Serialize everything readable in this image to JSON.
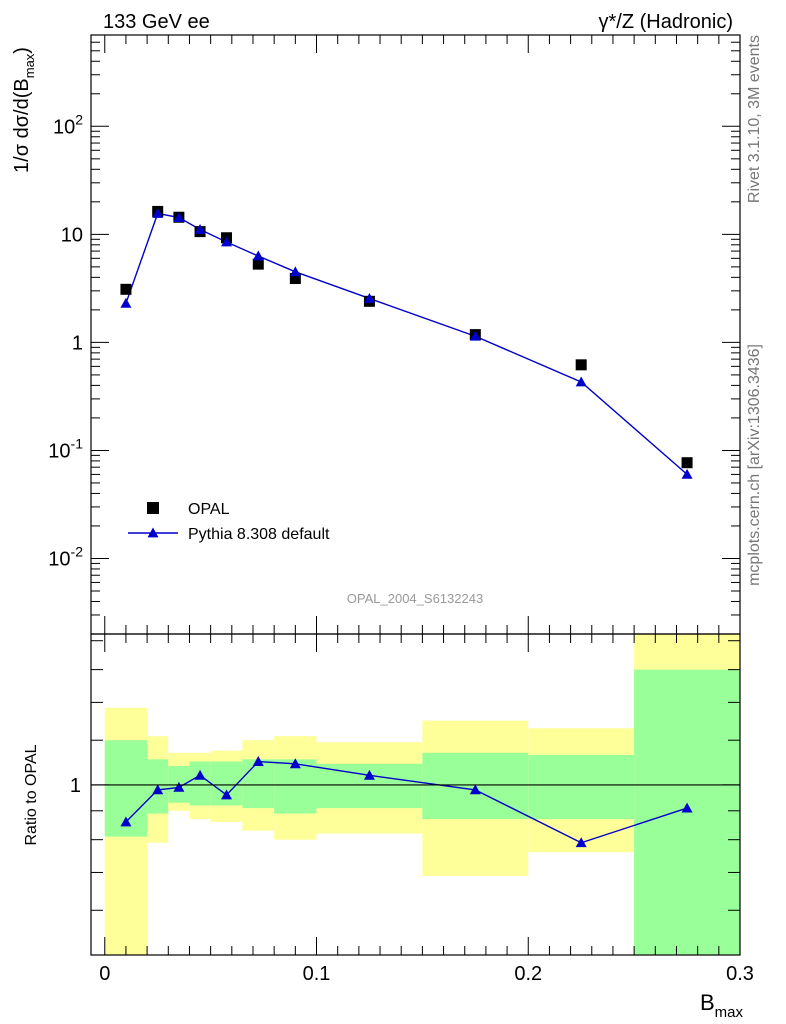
{
  "header": {
    "left_label": "133 GeV ee",
    "right_label": "γ*/Z (Hadronic)"
  },
  "side_text": {
    "rivet": "Rivet 3.1.10,  3M events",
    "mcplots": "mcplots.cern.ch [arXiv:1306.3436]"
  },
  "watermark": "OPAL_2004_S6132243",
  "colors": {
    "data": "#000000",
    "mc": "#0000cc",
    "band_stat": "#99ff99",
    "band_total": "#ffff99"
  },
  "chart_data": [
    {
      "type": "scatter",
      "panel": "main",
      "ylabel": "1/σ dσ/d(B_max)",
      "y_scale": "log",
      "ylim": [
        0.002,
        700
      ],
      "xlim": [
        -0.0065,
        0.3
      ],
      "y_ticks": [
        "10^-2",
        "10^-1",
        "1",
        "10",
        "10^2"
      ],
      "legend_placement": "lower-left",
      "series": [
        {
          "name": "OPAL",
          "marker": "square",
          "x": [
            0.01,
            0.025,
            0.035,
            0.045,
            0.0575,
            0.0725,
            0.09,
            0.125,
            0.175,
            0.225,
            0.275
          ],
          "y": [
            3.1,
            16.3,
            14.4,
            10.6,
            9.3,
            5.3,
            3.9,
            2.4,
            1.18,
            0.62,
            0.077
          ]
        },
        {
          "name": "Pythia 8.308 default",
          "marker": "triangle",
          "line": true,
          "x": [
            0.01,
            0.025,
            0.035,
            0.045,
            0.0575,
            0.0725,
            0.09,
            0.125,
            0.175,
            0.225,
            0.275
          ],
          "y": [
            2.3,
            15.6,
            14.3,
            11.1,
            8.5,
            6.3,
            4.5,
            2.55,
            1.14,
            0.43,
            0.06
          ]
        }
      ]
    },
    {
      "type": "line",
      "panel": "ratio",
      "ylabel": "Ratio to OPAL",
      "xlabel": "B_max",
      "xlim": [
        -0.0065,
        0.3
      ],
      "ylim": [
        0.5,
        1.85
      ],
      "y_ticks": [
        "1"
      ],
      "x_ticks": [
        "0",
        "0.1",
        "0.2",
        "0.3"
      ],
      "reference_line": 1,
      "bands": {
        "edges": [
          0.0,
          0.02,
          0.03,
          0.04,
          0.05,
          0.065,
          0.08,
          0.1,
          0.15,
          0.2,
          0.25,
          0.3
        ],
        "stat": [
          [
            0.81,
            1.2
          ],
          [
            0.89,
            1.11
          ],
          [
            0.93,
            1.08
          ],
          [
            0.92,
            1.1
          ],
          [
            0.92,
            1.1
          ],
          [
            0.91,
            1.11
          ],
          [
            0.89,
            1.11
          ],
          [
            0.91,
            1.09
          ],
          [
            0.87,
            1.14
          ],
          [
            0.87,
            1.13
          ],
          [
            0.5,
            1.6
          ],
          [
            0.5,
            1.6
          ]
        ],
        "total": [
          [
            0.5,
            1.37
          ],
          [
            0.79,
            1.22
          ],
          [
            0.9,
            1.14
          ],
          [
            0.87,
            1.14
          ],
          [
            0.86,
            1.15
          ],
          [
            0.83,
            1.2
          ],
          [
            0.8,
            1.22
          ],
          [
            0.82,
            1.19
          ],
          [
            0.69,
            1.3
          ],
          [
            0.76,
            1.26
          ],
          [
            0.5,
            1.85
          ],
          [
            0.5,
            1.85
          ]
        ]
      },
      "series": [
        {
          "name": "Pythia 8.308 default",
          "x": [
            0.01,
            0.025,
            0.035,
            0.045,
            0.0575,
            0.0725,
            0.09,
            0.125,
            0.175,
            0.225,
            0.275
          ],
          "y": [
            0.86,
            0.98,
            0.99,
            1.04,
            0.96,
            1.1,
            1.09,
            1.04,
            0.98,
            0.79,
            0.91
          ]
        }
      ]
    }
  ]
}
